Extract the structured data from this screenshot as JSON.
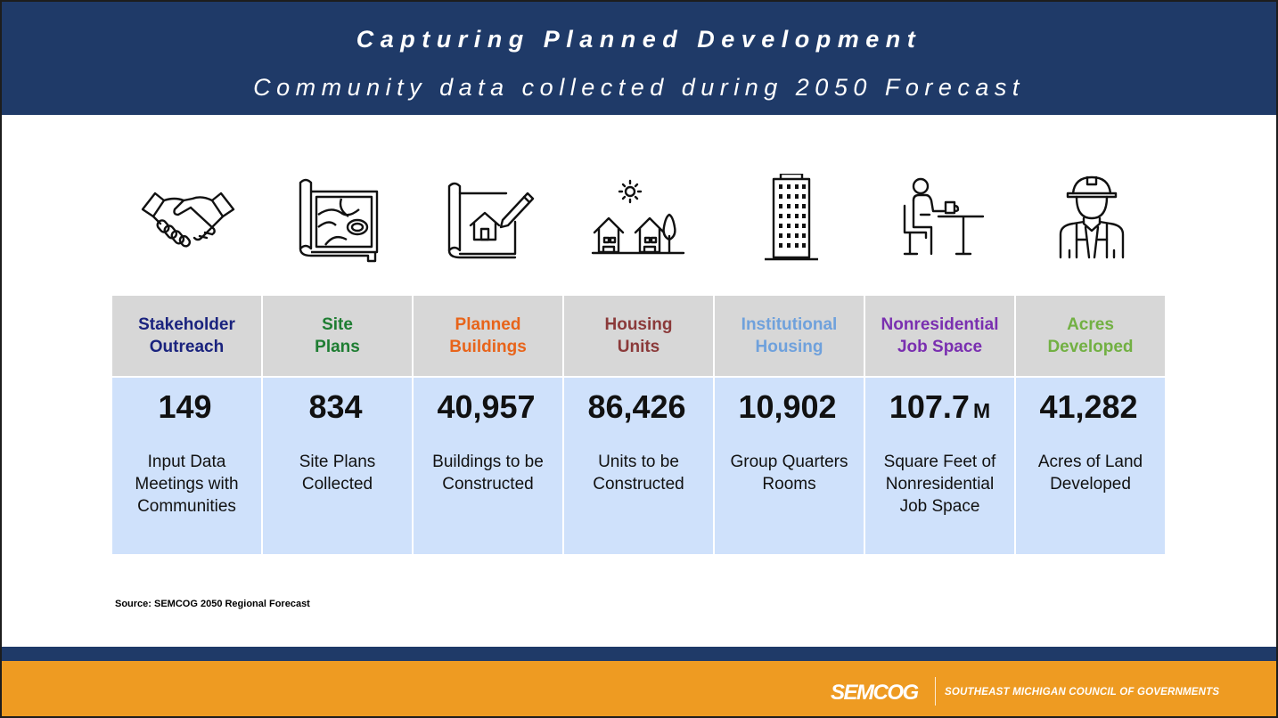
{
  "header": {
    "title": "Capturing Planned Development",
    "subtitle": "Community data collected during 2050 Forecast"
  },
  "icons": [
    "handshake-icon",
    "site-plan-map-icon",
    "building-blueprint-icon",
    "houses-icon",
    "tall-building-icon",
    "office-worker-icon",
    "construction-worker-icon"
  ],
  "columns": [
    {
      "label": "Stakeholder\nOutreach",
      "color": "#1a237e",
      "value": "149",
      "unit": "",
      "description": "Input Data\nMeetings with\nCommunities"
    },
    {
      "label": "Site\nPlans",
      "color": "#1e7d32",
      "value": "834",
      "unit": "",
      "description": "Site Plans\nCollected"
    },
    {
      "label": "Planned\nBuildings",
      "color": "#e8641a",
      "value": "40,957",
      "unit": "",
      "description": "Buildings to be\nConstructed"
    },
    {
      "label": "Housing\nUnits",
      "color": "#8b3a3a",
      "value": "86,426",
      "unit": "",
      "description": "Units to be\nConstructed"
    },
    {
      "label": "Institutional\nHousing",
      "color": "#6fa1dc",
      "value": "10,902",
      "unit": "",
      "description": "Group Quarters\nRooms"
    },
    {
      "label": "Nonresidential\nJob Space",
      "color": "#7a2fb0",
      "value": "107.7",
      "unit": "M",
      "description": "Square Feet of\nNonresidential\nJob Space"
    },
    {
      "label": "Acres\nDeveloped",
      "color": "#72b043",
      "value": "41,282",
      "unit": "",
      "description": "Acres of Land\nDeveloped"
    }
  ],
  "source": "Source: SEMCOG 2050 Regional Forecast",
  "footer": {
    "logo": "SEMCOG",
    "organization": "SOUTHEAST MICHIGAN COUNCIL OF GOVERNMENTS"
  },
  "colors": {
    "header_bg": "#1f3a68",
    "footer_bg": "#ee9b22",
    "table_head_bg": "#d7d7d7",
    "table_body_bg": "#cfe1fb"
  }
}
